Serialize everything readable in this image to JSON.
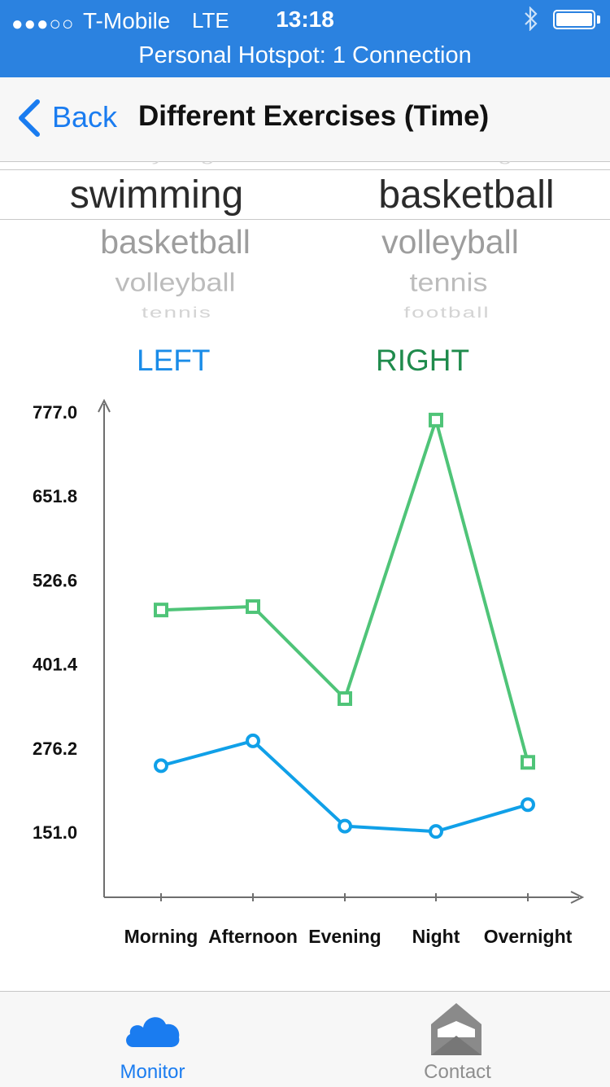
{
  "status_bar": {
    "signal": "●●●○○",
    "carrier": "T-Mobile",
    "network": "LTE",
    "time": "13:18",
    "bluetooth": "bluetooth-icon",
    "hotspot": "Personal Hotspot: 1 Connection"
  },
  "nav": {
    "back_label": "Back",
    "title": "Different Exercises (Time)"
  },
  "picker": {
    "left": {
      "above": "cycling",
      "selected": "swimming",
      "below": [
        "basketball",
        "volleyball",
        "tennis"
      ]
    },
    "right": {
      "above": "swimming",
      "selected": "basketball",
      "below": [
        "volleyball",
        "tennis",
        "football"
      ]
    }
  },
  "labels": {
    "left": "LEFT",
    "right": "RIGHT"
  },
  "colors": {
    "accent": "#1a7cf0",
    "status_bar": "#2b82e0",
    "left_series": "#10a0e8",
    "right_series": "#4fc478",
    "right_label": "#1f8b4c"
  },
  "chart_data": {
    "type": "line",
    "categories": [
      "Morning",
      "Afternoon",
      "Evening",
      "Night",
      "Overnight"
    ],
    "y_ticks": [
      "777.0",
      "651.8",
      "526.6",
      "401.4",
      "276.2",
      "151.0"
    ],
    "ylim": [
      151.0,
      777.0
    ],
    "series": [
      {
        "name": "LEFT",
        "marker": "circle",
        "values": [
          250,
          287,
          160,
          152,
          192
        ]
      },
      {
        "name": "RIGHT",
        "marker": "square",
        "values": [
          482,
          487,
          350,
          765,
          255
        ]
      }
    ],
    "grid": false
  },
  "tabs": [
    {
      "label": "Monitor",
      "icon": "cloud-icon",
      "active": true
    },
    {
      "label": "Contact",
      "icon": "envelope-icon",
      "active": false
    }
  ]
}
